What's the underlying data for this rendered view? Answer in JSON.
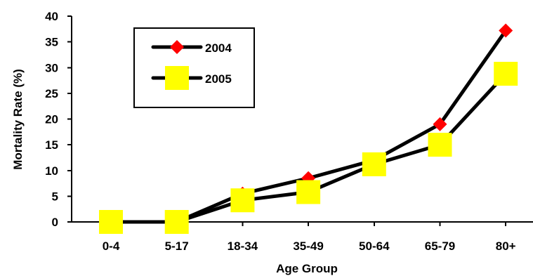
{
  "chart_data": {
    "type": "line",
    "categories": [
      "0-4",
      "5-17",
      "18-34",
      "35-49",
      "50-64",
      "65-79",
      "80+"
    ],
    "series": [
      {
        "name": "2004",
        "values": [
          0,
          0,
          5.5,
          8.5,
          12,
          19,
          37.2
        ],
        "marker": "diamond",
        "color": "#ff0000"
      },
      {
        "name": "2005",
        "values": [
          0,
          0,
          4.2,
          5.8,
          11.2,
          15,
          28.8
        ],
        "marker": "square",
        "color": "#ffff00"
      }
    ],
    "xlabel": "Age Group",
    "ylabel": "Mortality Rate (%)",
    "ylim": [
      0,
      40
    ],
    "yticks": [
      "0",
      "5",
      "10",
      "15",
      "20",
      "25",
      "30",
      "35",
      "40"
    ],
    "grid": false,
    "legend_position": "top-left"
  }
}
